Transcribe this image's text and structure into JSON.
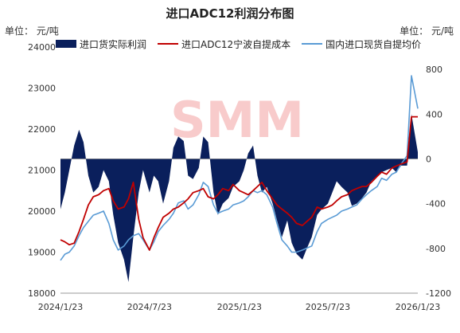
{
  "title": "进口ADC12利润分布图",
  "unit_left": "单位：  元/吨",
  "unit_right": "单位：  元/吨",
  "watermark": "SMM",
  "chart_data": {
    "type": "line",
    "title": "进口ADC12利润分布图",
    "x_ticks": [
      "2024/1/23",
      "2024/7/23",
      "2025/1/23",
      "2025/7/23",
      "2026/1/23"
    ],
    "x_range": [
      "2024-01-23",
      "2026-01-23"
    ],
    "y_left": {
      "ticks": [
        18000,
        19000,
        20000,
        21000,
        22000,
        23000,
        24000
      ],
      "range": [
        18000,
        24000
      ]
    },
    "y_right": {
      "ticks": [
        -1200,
        -800,
        -400,
        0,
        400,
        800
      ],
      "range": [
        -1200,
        1000
      ]
    },
    "series": [
      {
        "name": "进口货实际利润",
        "type": "area",
        "axis": "right",
        "color": "#0a1f5c",
        "x": [
          "2024-01-23",
          "2024-02-01",
          "2024-02-10",
          "2024-02-20",
          "2024-03-01",
          "2024-03-10",
          "2024-03-20",
          "2024-03-30",
          "2024-04-10",
          "2024-04-20",
          "2024-05-01",
          "2024-05-10",
          "2024-05-20",
          "2024-06-01",
          "2024-06-10",
          "2024-06-20",
          "2024-07-01",
          "2024-07-10",
          "2024-07-23",
          "2024-08-01",
          "2024-08-10",
          "2024-08-20",
          "2024-09-01",
          "2024-09-10",
          "2024-09-20",
          "2024-10-01",
          "2024-10-10",
          "2024-10-20",
          "2024-11-01",
          "2024-11-10",
          "2024-11-20",
          "2024-12-01",
          "2024-12-10",
          "2024-12-20",
          "2025-01-01",
          "2025-01-10",
          "2025-01-23",
          "2025-02-01",
          "2025-02-10",
          "2025-02-20",
          "2025-03-01",
          "2025-03-10",
          "2025-03-20",
          "2025-04-01",
          "2025-04-10",
          "2025-04-20",
          "2025-05-01",
          "2025-05-10",
          "2025-05-20",
          "2025-06-01",
          "2025-06-10",
          "2025-06-20",
          "2025-07-01",
          "2025-07-10",
          "2025-07-23",
          "2025-08-01",
          "2025-08-10",
          "2025-08-20",
          "2025-09-01",
          "2025-09-10",
          "2025-09-20",
          "2025-10-01",
          "2025-10-10",
          "2025-10-20",
          "2025-11-01",
          "2025-11-10",
          "2025-11-20",
          "2025-12-01",
          "2025-12-10",
          "2025-12-20",
          "2026-01-01",
          "2026-01-10",
          "2026-01-23"
        ],
        "values": [
          -450,
          -300,
          -100,
          120,
          260,
          150,
          -150,
          -300,
          -250,
          -100,
          -200,
          -500,
          -750,
          -900,
          -1100,
          -700,
          -300,
          -100,
          -300,
          -150,
          -200,
          -400,
          -200,
          100,
          200,
          160,
          -150,
          -180,
          -80,
          200,
          150,
          -300,
          -500,
          -400,
          -350,
          -250,
          -200,
          -100,
          50,
          120,
          -150,
          -300,
          -250,
          -400,
          -550,
          -700,
          -550,
          -750,
          -850,
          -900,
          -800,
          -700,
          -500,
          -450,
          -400,
          -300,
          -200,
          -250,
          -300,
          -420,
          -400,
          -350,
          -300,
          -200,
          -150,
          -120,
          -100,
          -80,
          -120,
          -60,
          -60,
          400,
          60
        ]
      },
      {
        "name": "进口ADC12宁波自提成本",
        "type": "line",
        "axis": "left",
        "color": "#c00000",
        "x": [
          "2024-01-23",
          "2024-02-01",
          "2024-02-10",
          "2024-02-20",
          "2024-03-01",
          "2024-03-10",
          "2024-03-20",
          "2024-03-30",
          "2024-04-10",
          "2024-04-20",
          "2024-05-01",
          "2024-05-10",
          "2024-05-20",
          "2024-06-01",
          "2024-06-10",
          "2024-06-20",
          "2024-07-01",
          "2024-07-10",
          "2024-07-23",
          "2024-08-01",
          "2024-08-10",
          "2024-08-20",
          "2024-09-01",
          "2024-09-10",
          "2024-09-20",
          "2024-10-01",
          "2024-10-10",
          "2024-10-20",
          "2024-11-01",
          "2024-11-10",
          "2024-11-20",
          "2024-12-01",
          "2024-12-10",
          "2024-12-20",
          "2025-01-01",
          "2025-01-10",
          "2025-01-23",
          "2025-02-01",
          "2025-02-10",
          "2025-02-20",
          "2025-03-01",
          "2025-03-10",
          "2025-03-20",
          "2025-04-01",
          "2025-04-10",
          "2025-04-20",
          "2025-05-01",
          "2025-05-10",
          "2025-05-20",
          "2025-06-01",
          "2025-06-10",
          "2025-06-20",
          "2025-07-01",
          "2025-07-10",
          "2025-07-23",
          "2025-08-01",
          "2025-08-10",
          "2025-08-20",
          "2025-09-01",
          "2025-09-10",
          "2025-09-20",
          "2025-10-01",
          "2025-10-10",
          "2025-10-20",
          "2025-11-01",
          "2025-11-10",
          "2025-11-20",
          "2025-12-01",
          "2025-12-10",
          "2025-12-20",
          "2026-01-01",
          "2026-01-10",
          "2026-01-23"
        ],
        "values": [
          19300,
          19250,
          19180,
          19220,
          19500,
          19800,
          20150,
          20350,
          20400,
          20500,
          20550,
          20250,
          20050,
          20100,
          20300,
          20700,
          19800,
          19350,
          19050,
          19350,
          19600,
          19850,
          19950,
          20050,
          20100,
          20200,
          20300,
          20450,
          20500,
          20550,
          20350,
          20300,
          20400,
          20550,
          20500,
          20650,
          20500,
          20450,
          20400,
          20500,
          20600,
          20700,
          20500,
          20300,
          20150,
          20050,
          19950,
          19850,
          19700,
          19650,
          19750,
          19850,
          20100,
          20050,
          20100,
          20150,
          20250,
          20350,
          20400,
          20500,
          20550,
          20600,
          20600,
          20700,
          20850,
          20950,
          20900,
          21050,
          21100,
          21150,
          21200,
          22300,
          22300
        ]
      },
      {
        "name": "国内进口现货自提均价",
        "type": "line",
        "axis": "left",
        "color": "#5a9bd5",
        "x": [
          "2024-01-23",
          "2024-02-01",
          "2024-02-10",
          "2024-02-20",
          "2024-03-01",
          "2024-03-10",
          "2024-03-20",
          "2024-03-30",
          "2024-04-10",
          "2024-04-20",
          "2024-05-01",
          "2024-05-10",
          "2024-05-20",
          "2024-06-01",
          "2024-06-10",
          "2024-06-20",
          "2024-07-01",
          "2024-07-10",
          "2024-07-23",
          "2024-08-01",
          "2024-08-10",
          "2024-08-20",
          "2024-09-01",
          "2024-09-10",
          "2024-09-20",
          "2024-10-01",
          "2024-10-10",
          "2024-10-20",
          "2024-11-01",
          "2024-11-10",
          "2024-11-20",
          "2024-12-01",
          "2024-12-10",
          "2024-12-20",
          "2025-01-01",
          "2025-01-10",
          "2025-01-23",
          "2025-02-01",
          "2025-02-10",
          "2025-02-20",
          "2025-03-01",
          "2025-03-10",
          "2025-03-20",
          "2025-04-01",
          "2025-04-10",
          "2025-04-20",
          "2025-05-01",
          "2025-05-10",
          "2025-05-20",
          "2025-06-01",
          "2025-06-10",
          "2025-06-20",
          "2025-07-01",
          "2025-07-10",
          "2025-07-23",
          "2025-08-01",
          "2025-08-10",
          "2025-08-20",
          "2025-09-01",
          "2025-09-10",
          "2025-09-20",
          "2025-10-01",
          "2025-10-10",
          "2025-10-20",
          "2025-11-01",
          "2025-11-10",
          "2025-11-20",
          "2025-12-01",
          "2025-12-10",
          "2025-12-20",
          "2026-01-01",
          "2026-01-10",
          "2026-01-23"
        ],
        "values": [
          18800,
          18950,
          19000,
          19150,
          19400,
          19600,
          19750,
          19900,
          19950,
          20000,
          19700,
          19300,
          19050,
          19150,
          19300,
          19400,
          19450,
          19300,
          19050,
          19250,
          19500,
          19650,
          19800,
          19950,
          20200,
          20250,
          20050,
          20150,
          20400,
          20700,
          20600,
          20150,
          19950,
          20000,
          20050,
          20150,
          20200,
          20250,
          20350,
          20500,
          20450,
          20500,
          20400,
          20100,
          19700,
          19300,
          19150,
          19000,
          19000,
          19050,
          19100,
          19150,
          19500,
          19700,
          19800,
          19850,
          19900,
          20000,
          20050,
          20100,
          20150,
          20300,
          20400,
          20500,
          20600,
          20800,
          20750,
          20900,
          20950,
          21150,
          21350,
          23300,
          22500
        ]
      }
    ]
  }
}
